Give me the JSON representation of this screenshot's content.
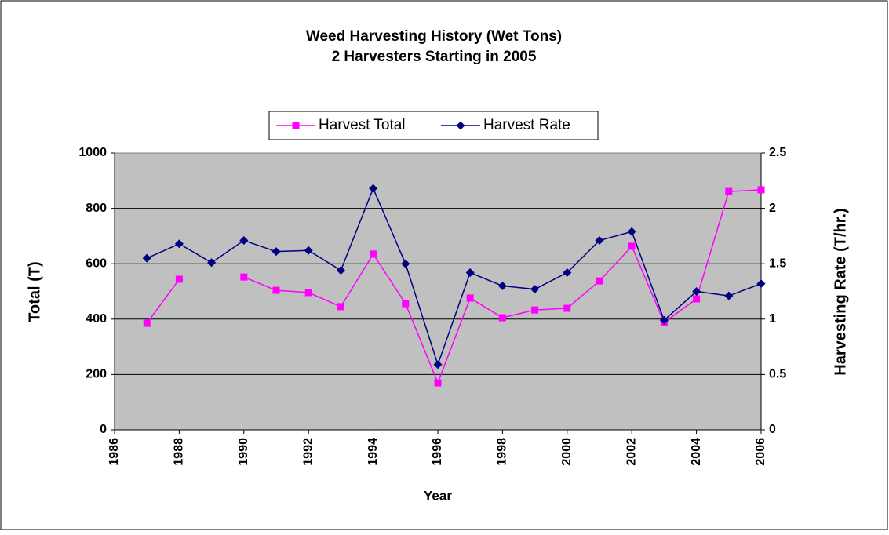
{
  "chart_data": {
    "type": "line",
    "title": "Weed Harvesting History (Wet Tons)",
    "subtitle": "2 Harvesters Starting in 2005",
    "xlabel": "Year",
    "ylabel": "Total (T)",
    "y2label": "Harvesting Rate (T/hr.)",
    "x": [
      1987,
      1988,
      1989,
      1990,
      1991,
      1992,
      1993,
      1994,
      1995,
      1996,
      1997,
      1998,
      1999,
      2000,
      2001,
      2002,
      2003,
      2004,
      2005,
      2006
    ],
    "series": [
      {
        "name": "Harvest Total",
        "color": "#ff00ff",
        "marker": "square",
        "values": [
          385,
          544,
          null,
          552,
          504,
          496,
          445,
          635,
          456,
          170,
          476,
          405,
          433,
          439,
          538,
          663,
          388,
          473,
          861,
          867
        ]
      },
      {
        "name": "Harvest Rate",
        "color": "#000080",
        "marker": "diamond",
        "axis": "y2",
        "values": [
          1.55,
          1.68,
          1.51,
          1.71,
          1.61,
          1.62,
          1.44,
          2.18,
          1.5,
          0.59,
          1.42,
          1.3,
          1.27,
          1.42,
          1.71,
          1.79,
          0.99,
          1.25,
          1.21,
          1.32
        ]
      }
    ],
    "xlim": [
      1986,
      2006
    ],
    "xticks": [
      1986,
      1988,
      1990,
      1992,
      1994,
      1996,
      1998,
      2000,
      2002,
      2004,
      2006
    ],
    "ylim": [
      0,
      1000
    ],
    "yticks": [
      0,
      200,
      400,
      600,
      800,
      1000
    ],
    "y2lim": [
      0,
      2.5
    ],
    "y2ticks": [
      0,
      0.5,
      1,
      1.5,
      2,
      2.5
    ],
    "grid": true,
    "legend": "top",
    "plot_background": "#c0c0c0"
  }
}
